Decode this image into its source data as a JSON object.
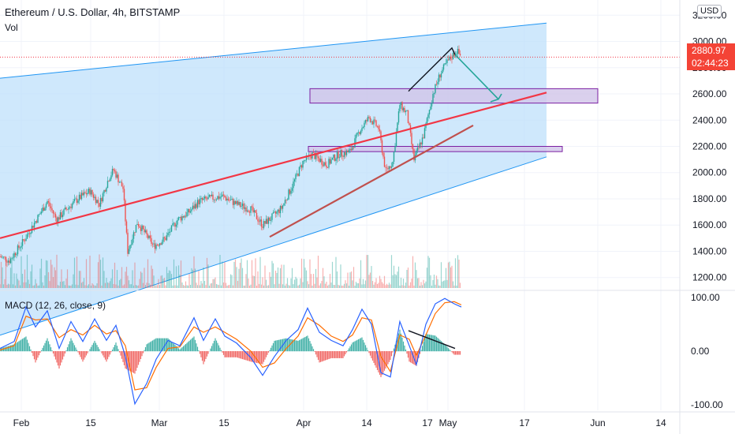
{
  "header": {
    "title": "Ethereum / U.S. Dollar, 4h, BITSTAMP",
    "volume_label": "Vol",
    "currency": "USD"
  },
  "last_price": {
    "price": "2880.97",
    "countdown": "02:44:23",
    "value": 2880.97
  },
  "macd": {
    "label": "MACD (12, 26, close, 9)",
    "ticks": [
      "100.00",
      "0.00",
      "-100.00"
    ]
  },
  "colors": {
    "channel_fill": "#bbdefb",
    "channel_line": "#2196f3",
    "trend_line": "#f23645",
    "support_line": "#c0504d",
    "zone_fill": "#d1c4e9",
    "zone_border": "#7b1fa2",
    "bull": "#26a69a",
    "bear": "#ef5350",
    "macd_line": "#2962ff",
    "signal_line": "#ff6d00",
    "arrow": "#26a69a",
    "grid": "#f0f3fa"
  },
  "chart_data": [
    {
      "type": "candlestick",
      "title": "Ethereum / U.S. Dollar, 4h, BITSTAMP",
      "y_ticks": [
        "3200.00",
        "3000.00",
        "2800.00",
        "2600.00",
        "2400.00",
        "2200.00",
        "2000.00",
        "1800.00",
        "1600.00",
        "1400.00",
        "1200.00"
      ],
      "ylim": [
        1120,
        3280
      ],
      "x_ticks": [
        "Feb",
        "15",
        "Mar",
        "15",
        "Apr",
        "14",
        "17",
        "May",
        "17",
        "Jun",
        "14"
      ],
      "series_close_path": [
        [
          0,
          1360
        ],
        [
          4,
          1330
        ],
        [
          10,
          1480
        ],
        [
          14,
          1600
        ],
        [
          20,
          1780
        ],
        [
          24,
          1640
        ],
        [
          28,
          1720
        ],
        [
          33,
          1800
        ],
        [
          38,
          1860
        ],
        [
          42,
          1760
        ],
        [
          46,
          1960
        ],
        [
          48,
          2020
        ],
        [
          52,
          1880
        ],
        [
          54,
          1400
        ],
        [
          58,
          1620
        ],
        [
          62,
          1520
        ],
        [
          65,
          1440
        ],
        [
          70,
          1500
        ],
        [
          75,
          1640
        ],
        [
          80,
          1700
        ],
        [
          84,
          1780
        ],
        [
          88,
          1800
        ],
        [
          94,
          1820
        ],
        [
          100,
          1760
        ],
        [
          106,
          1720
        ],
        [
          111,
          1600
        ],
        [
          115,
          1660
        ],
        [
          119,
          1730
        ],
        [
          123,
          1880
        ],
        [
          128,
          2080
        ],
        [
          132,
          2140
        ],
        [
          138,
          2060
        ],
        [
          143,
          2140
        ],
        [
          148,
          2160
        ],
        [
          152,
          2320
        ],
        [
          156,
          2420
        ],
        [
          160,
          2340
        ],
        [
          163,
          2010
        ],
        [
          166,
          2080
        ],
        [
          169,
          2520
        ],
        [
          172,
          2450
        ],
        [
          175,
          2100
        ],
        [
          179,
          2280
        ],
        [
          183,
          2600
        ],
        [
          186,
          2750
        ],
        [
          189,
          2840
        ],
        [
          193,
          2930
        ],
        [
          195,
          2880.97
        ]
      ],
      "annotations": {
        "ascending_channel": true,
        "resistance_zone": [
          2530,
          2640
        ],
        "support_zone": [
          2160,
          2200
        ]
      }
    },
    {
      "type": "line",
      "title": "MACD (12, 26, close, 9)",
      "y_ticks": [
        "100.00",
        "0.00",
        "-100.00"
      ],
      "ylim": [
        -110,
        110
      ],
      "series": [
        {
          "name": "MACD",
          "points": [
            [
              0,
              5
            ],
            [
              6,
              18
            ],
            [
              11,
              82
            ],
            [
              15,
              45
            ],
            [
              20,
              75
            ],
            [
              25,
              5
            ],
            [
              30,
              55
            ],
            [
              35,
              18
            ],
            [
              40,
              60
            ],
            [
              45,
              20
            ],
            [
              49,
              48
            ],
            [
              53,
              -10
            ],
            [
              57,
              -98
            ],
            [
              62,
              -60
            ],
            [
              66,
              -15
            ],
            [
              71,
              20
            ],
            [
              76,
              10
            ],
            [
              82,
              62
            ],
            [
              86,
              20
            ],
            [
              91,
              60
            ],
            [
              95,
              28
            ],
            [
              100,
              15
            ],
            [
              106,
              -12
            ],
            [
              111,
              -45
            ],
            [
              116,
              -10
            ],
            [
              121,
              20
            ],
            [
              126,
              40
            ],
            [
              130,
              80
            ],
            [
              135,
              35
            ],
            [
              140,
              20
            ],
            [
              145,
              10
            ],
            [
              149,
              40
            ],
            [
              153,
              78
            ],
            [
              157,
              50
            ],
            [
              161,
              -40
            ],
            [
              165,
              -48
            ],
            [
              169,
              55
            ],
            [
              173,
              10
            ],
            [
              176,
              -25
            ],
            [
              180,
              50
            ],
            [
              184,
              88
            ],
            [
              188,
              98
            ],
            [
              192,
              88
            ],
            [
              195,
              82
            ]
          ]
        },
        {
          "name": "Signal",
          "points": [
            [
              0,
              2
            ],
            [
              6,
              10
            ],
            [
              11,
              65
            ],
            [
              15,
              58
            ],
            [
              20,
              60
            ],
            [
              25,
              25
            ],
            [
              30,
              40
            ],
            [
              35,
              30
            ],
            [
              40,
              48
            ],
            [
              45,
              32
            ],
            [
              49,
              38
            ],
            [
              53,
              10
            ],
            [
              57,
              -72
            ],
            [
              62,
              -68
            ],
            [
              66,
              -30
            ],
            [
              71,
              5
            ],
            [
              76,
              8
            ],
            [
              82,
              45
            ],
            [
              86,
              35
            ],
            [
              91,
              45
            ],
            [
              95,
              35
            ],
            [
              100,
              22
            ],
            [
              106,
              0
            ],
            [
              111,
              -30
            ],
            [
              116,
              -22
            ],
            [
              121,
              5
            ],
            [
              126,
              28
            ],
            [
              130,
              62
            ],
            [
              135,
              48
            ],
            [
              140,
              28
            ],
            [
              145,
              18
            ],
            [
              149,
              30
            ],
            [
              153,
              62
            ],
            [
              157,
              58
            ],
            [
              161,
              -10
            ],
            [
              165,
              -38
            ],
            [
              169,
              30
            ],
            [
              173,
              22
            ],
            [
              176,
              -8
            ],
            [
              180,
              30
            ],
            [
              184,
              70
            ],
            [
              188,
              90
            ],
            [
              192,
              92
            ],
            [
              195,
              86
            ]
          ]
        }
      ]
    }
  ]
}
